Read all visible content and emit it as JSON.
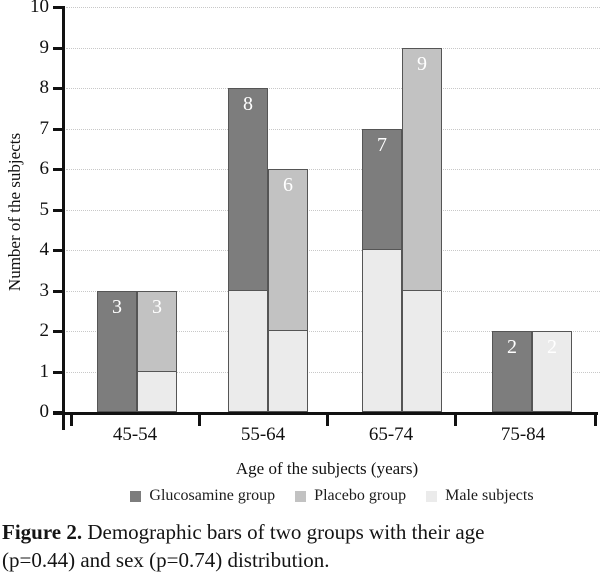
{
  "chart_data": {
    "type": "bar",
    "categories": [
      "45-54",
      "55-64",
      "65-74",
      "75-84"
    ],
    "series": [
      {
        "name": "Glucosamine group",
        "color": "#7d7d7d",
        "values": [
          3,
          8,
          7,
          2
        ],
        "male_overlay_values": [
          0,
          3,
          4,
          0
        ]
      },
      {
        "name": "Placebo group",
        "color": "#c2c2c2",
        "values": [
          3,
          6,
          9,
          2
        ],
        "male_overlay_values": [
          1,
          2,
          3,
          2
        ]
      }
    ],
    "male_overlay_name": "Male subjects",
    "male_overlay_color": "#ebebeb",
    "bar_value_labels": [
      [
        "3",
        "8",
        "7",
        "2"
      ],
      [
        "3",
        "6",
        "9",
        "2"
      ]
    ],
    "title": "",
    "xlabel": "Age of the subjects (years)",
    "ylabel": "Number of the subjects",
    "ylim": [
      0,
      10
    ],
    "ytick_interval": 1,
    "y_tick_labels": [
      "0",
      "1",
      "2",
      "3",
      "4",
      "5",
      "6",
      "7",
      "8",
      "9",
      "10"
    ],
    "grid": "horizontal dotted",
    "legend_position": "bottom",
    "legend": [
      {
        "label": "Glucosamine group",
        "color": "#7d7d7d"
      },
      {
        "label": "Placebo group",
        "color": "#c2c2c2"
      },
      {
        "label": "Male subjects",
        "color": "#ebebeb"
      }
    ]
  },
  "colors": {
    "bar_border": "#555555",
    "gridline": "#c8c8c8",
    "axis": "#111111",
    "bar_label_text": "#ffffff",
    "background": "#ffffff"
  },
  "caption": {
    "prefix": "Figure 2.",
    "line1": "Demographic bars of two groups with their age",
    "line2": "(p=0.44) and sex (p=0.74) distribution."
  }
}
